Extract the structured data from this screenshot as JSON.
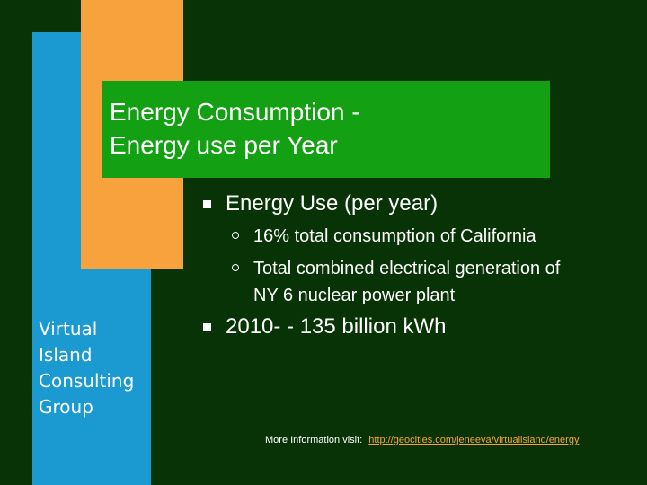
{
  "slide": {
    "title_line1": "Energy Consumption -",
    "title_line2": "Energy use per Year",
    "company_lines": [
      "Virtual",
      "Island",
      "Consulting",
      "Group"
    ],
    "bullets": [
      {
        "text": "Energy Use (per year)",
        "subs": [
          {
            "lines": [
              "16% total consumption of California"
            ]
          },
          {
            "lines": [
              "Total combined electrical generation of",
              "NY 6 nuclear power plant"
            ]
          }
        ]
      },
      {
        "text": "2010- - 135 billion kWh"
      }
    ],
    "more_info_label": "More Information visit:",
    "more_info_link": "http://geocities.com/jeneeva/virtualisland/energy"
  },
  "colors": {
    "background": "#083306",
    "blue_bar": "#1a9ad0",
    "orange_bar": "#f7a23c",
    "title_box": "#13a113",
    "link": "#f7a23c"
  }
}
